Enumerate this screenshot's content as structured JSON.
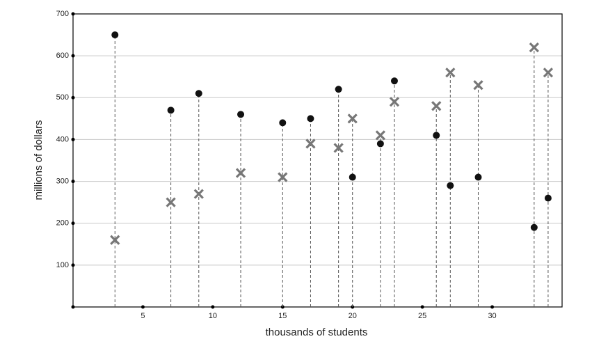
{
  "chart_data": {
    "type": "scatter",
    "x_label": "thousands of students",
    "y_label": "millions of dollars",
    "x": [
      3,
      7,
      9,
      12,
      15,
      17,
      19,
      20,
      22,
      23,
      26,
      27,
      29,
      33,
      34
    ],
    "series": [
      {
        "color": "#111111",
        "marker": "circle",
        "values": [
          650,
          470,
          510,
          460,
          440,
          450,
          520,
          310,
          390,
          540,
          410,
          290,
          310,
          190,
          260
        ]
      },
      {
        "color": "#777777",
        "marker": "x",
        "values": [
          160,
          250,
          270,
          320,
          310,
          390,
          380,
          450,
          410,
          490,
          480,
          560,
          530,
          620,
          560
        ]
      }
    ],
    "drop_lines": true,
    "xlim": [
      0,
      35
    ],
    "ylim": [
      0,
      700
    ],
    "xticks": [
      5,
      10,
      15,
      20,
      25,
      30
    ],
    "yticks": [
      100,
      200,
      300,
      400,
      500,
      600,
      700
    ],
    "grid": true
  }
}
